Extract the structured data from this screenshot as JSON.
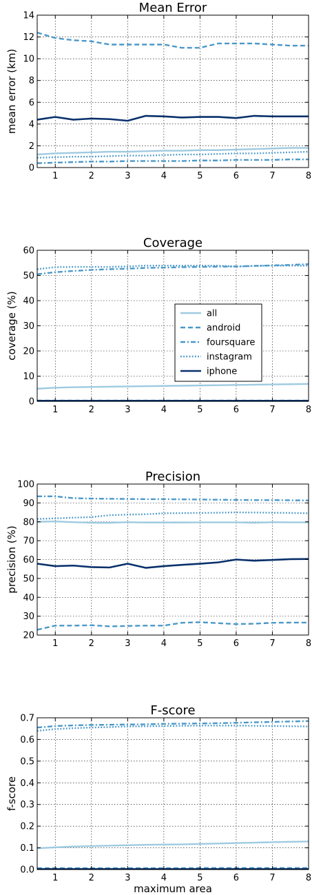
{
  "colors": {
    "all": "#9ecae1",
    "android": "#4a98c9",
    "foursquare": "#4a98c9",
    "instagram": "#4a98c9",
    "iphone": "#08306b"
  },
  "line_styles": {
    "all": "solid",
    "android": "dashed",
    "foursquare": "dashdot",
    "instagram": "dotted",
    "iphone": "solid"
  },
  "legend": {
    "placement": "center-right",
    "entries": [
      "all",
      "android",
      "foursquare",
      "instagram",
      "iphone"
    ]
  },
  "chart_data": [
    {
      "type": "line",
      "title": "Mean Error",
      "xlabel": "",
      "ylabel": "mean error (km)",
      "xlim": [
        0.5,
        8
      ],
      "ylim": [
        0,
        14
      ],
      "xticks": [
        1,
        2,
        3,
        4,
        5,
        6,
        7,
        8
      ],
      "yticks": [
        0,
        2,
        4,
        6,
        8,
        10,
        12,
        14
      ],
      "grid": true,
      "x": [
        0.5,
        1,
        1.5,
        2,
        2.5,
        3,
        3.5,
        4,
        4.5,
        5,
        5.5,
        6,
        6.5,
        7,
        7.5,
        8
      ],
      "series": [
        {
          "name": "all",
          "values": [
            1.2,
            1.3,
            1.35,
            1.4,
            1.45,
            1.45,
            1.5,
            1.55,
            1.55,
            1.6,
            1.6,
            1.65,
            1.7,
            1.75,
            1.8,
            1.8
          ]
        },
        {
          "name": "android",
          "values": [
            12.4,
            11.9,
            11.7,
            11.6,
            11.3,
            11.3,
            11.3,
            11.3,
            11.0,
            11.0,
            11.4,
            11.4,
            11.4,
            11.3,
            11.2,
            11.2
          ]
        },
        {
          "name": "foursquare",
          "values": [
            0.4,
            0.45,
            0.5,
            0.55,
            0.55,
            0.6,
            0.6,
            0.6,
            0.6,
            0.65,
            0.65,
            0.7,
            0.7,
            0.7,
            0.75,
            0.75
          ]
        },
        {
          "name": "instagram",
          "values": [
            0.9,
            0.95,
            1.0,
            1.0,
            1.05,
            1.1,
            1.1,
            1.15,
            1.2,
            1.2,
            1.25,
            1.3,
            1.3,
            1.35,
            1.4,
            1.45
          ]
        },
        {
          "name": "iphone",
          "values": [
            4.4,
            4.65,
            4.4,
            4.5,
            4.45,
            4.3,
            4.75,
            4.7,
            4.6,
            4.65,
            4.65,
            4.55,
            4.75,
            4.7,
            4.7,
            4.7
          ]
        }
      ]
    },
    {
      "type": "line",
      "title": "Coverage",
      "xlabel": "",
      "ylabel": "coverage (%)",
      "xlim": [
        0.5,
        8
      ],
      "ylim": [
        0,
        60
      ],
      "xticks": [
        1,
        2,
        3,
        4,
        5,
        6,
        7,
        8
      ],
      "yticks": [
        0,
        10,
        20,
        30,
        40,
        50,
        60
      ],
      "grid": true,
      "x": [
        0.5,
        1,
        1.5,
        2,
        2.5,
        3,
        3.5,
        4,
        4.5,
        5,
        5.5,
        6,
        6.5,
        7,
        7.5,
        8
      ],
      "series": [
        {
          "name": "all",
          "values": [
            5.0,
            5.4,
            5.6,
            5.7,
            5.8,
            5.9,
            6.0,
            6.1,
            6.2,
            6.3,
            6.4,
            6.5,
            6.6,
            6.7,
            6.8,
            6.9
          ]
        },
        {
          "name": "android",
          "values": [
            0.3,
            0.3,
            0.3,
            0.3,
            0.3,
            0.3,
            0.3,
            0.3,
            0.3,
            0.3,
            0.3,
            0.3,
            0.3,
            0.3,
            0.3,
            0.3
          ]
        },
        {
          "name": "foursquare",
          "values": [
            50.5,
            51.3,
            51.8,
            52.2,
            52.5,
            52.7,
            53.0,
            53.1,
            53.3,
            53.4,
            53.5,
            53.6,
            53.8,
            54.0,
            54.2,
            54.5
          ]
        },
        {
          "name": "instagram",
          "values": [
            52.5,
            53.3,
            53.4,
            53.4,
            53.4,
            53.6,
            53.9,
            53.9,
            53.9,
            53.9,
            53.9,
            53.5,
            53.8,
            53.9,
            53.9,
            53.9
          ]
        },
        {
          "name": "iphone",
          "values": [
            0.2,
            0.2,
            0.2,
            0.2,
            0.2,
            0.2,
            0.2,
            0.2,
            0.2,
            0.2,
            0.2,
            0.2,
            0.2,
            0.2,
            0.2,
            0.2
          ]
        }
      ]
    },
    {
      "type": "line",
      "title": "Precision",
      "xlabel": "",
      "ylabel": "precision (%)",
      "xlim": [
        0.5,
        8
      ],
      "ylim": [
        20,
        100
      ],
      "xticks": [
        1,
        2,
        3,
        4,
        5,
        6,
        7,
        8
      ],
      "yticks": [
        20,
        30,
        40,
        50,
        60,
        70,
        80,
        90,
        100
      ],
      "grid": true,
      "x": [
        0.5,
        1,
        1.5,
        2,
        2.5,
        3,
        3.5,
        4,
        4.5,
        5,
        5.5,
        6,
        6.5,
        7,
        7.5,
        8
      ],
      "series": [
        {
          "name": "all",
          "values": [
            80.0,
            80.2,
            79.8,
            79.5,
            79.5,
            79.8,
            79.6,
            79.6,
            79.6,
            79.7,
            79.7,
            79.7,
            79.5,
            79.8,
            79.7,
            79.7
          ]
        },
        {
          "name": "android",
          "values": [
            22.8,
            25.0,
            25.0,
            25.2,
            24.6,
            24.8,
            25.0,
            25.0,
            26.5,
            26.8,
            26.3,
            25.8,
            26.0,
            26.5,
            26.6,
            26.6
          ]
        },
        {
          "name": "foursquare",
          "values": [
            93.5,
            93.5,
            92.5,
            92.3,
            92.2,
            92.1,
            92.0,
            92.0,
            91.9,
            91.8,
            91.7,
            91.6,
            91.5,
            91.5,
            91.4,
            91.3
          ]
        },
        {
          "name": "instagram",
          "values": [
            81.5,
            81.8,
            82.2,
            82.5,
            83.5,
            83.8,
            84.0,
            84.5,
            84.6,
            84.7,
            84.8,
            85.0,
            84.9,
            84.8,
            84.7,
            84.5
          ]
        },
        {
          "name": "iphone",
          "values": [
            57.8,
            56.5,
            56.8,
            56.0,
            55.8,
            57.8,
            55.6,
            56.5,
            57.2,
            57.8,
            58.5,
            60.0,
            59.4,
            59.8,
            60.2,
            60.3
          ]
        }
      ]
    },
    {
      "type": "line",
      "title": "F-score",
      "xlabel": "maximum area",
      "ylabel": "f-score",
      "xlim": [
        0.5,
        8
      ],
      "ylim": [
        0,
        0.7
      ],
      "xticks": [
        1,
        2,
        3,
        4,
        5,
        6,
        7,
        8
      ],
      "yticks": [
        0.0,
        0.1,
        0.2,
        0.3,
        0.4,
        0.5,
        0.6,
        0.7
      ],
      "ytick_labels": [
        "0.0",
        "0.1",
        "0.2",
        "0.3",
        "0.4",
        "0.5",
        "0.6",
        "0.7"
      ],
      "grid": true,
      "x": [
        0.5,
        1,
        1.5,
        2,
        2.5,
        3,
        3.5,
        4,
        4.5,
        5,
        5.5,
        6,
        6.5,
        7,
        7.5,
        8
      ],
      "series": [
        {
          "name": "all",
          "values": [
            0.098,
            0.102,
            0.106,
            0.108,
            0.11,
            0.112,
            0.114,
            0.115,
            0.116,
            0.118,
            0.12,
            0.122,
            0.124,
            0.126,
            0.128,
            0.129
          ]
        },
        {
          "name": "android",
          "values": [
            0.006,
            0.006,
            0.006,
            0.006,
            0.006,
            0.006,
            0.006,
            0.006,
            0.006,
            0.007,
            0.007,
            0.007,
            0.007,
            0.007,
            0.007,
            0.007
          ]
        },
        {
          "name": "foursquare",
          "values": [
            0.655,
            0.662,
            0.665,
            0.667,
            0.668,
            0.669,
            0.67,
            0.672,
            0.673,
            0.674,
            0.675,
            0.677,
            0.679,
            0.681,
            0.683,
            0.685
          ]
        },
        {
          "name": "instagram",
          "values": [
            0.64,
            0.648,
            0.652,
            0.655,
            0.657,
            0.66,
            0.661,
            0.662,
            0.663,
            0.664,
            0.664,
            0.664,
            0.663,
            0.662,
            0.661,
            0.66
          ]
        },
        {
          "name": "iphone",
          "values": [
            0.002,
            0.002,
            0.002,
            0.002,
            0.002,
            0.002,
            0.002,
            0.002,
            0.002,
            0.002,
            0.002,
            0.002,
            0.002,
            0.002,
            0.002,
            0.002
          ]
        }
      ]
    }
  ]
}
